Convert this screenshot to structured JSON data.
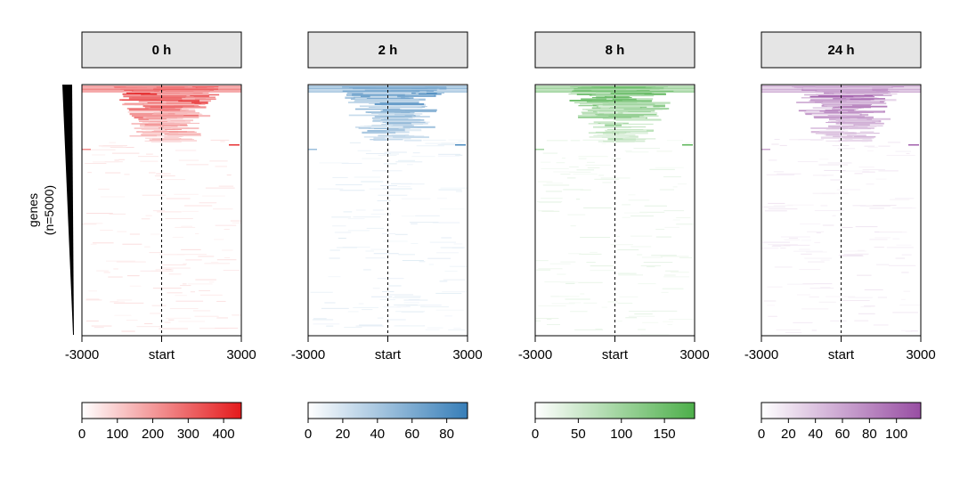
{
  "chart_data": {
    "type": "heatmap",
    "row_axis": {
      "label": "genes",
      "count_label": "(n=5000)"
    },
    "x_ticks": [
      "-3000",
      "start",
      "3000"
    ],
    "x_range": [
      -3000,
      3000
    ],
    "panels": [
      {
        "title": "0 h",
        "color_low": "#ffffff",
        "color_high": "#e41a1c",
        "scale_range": [
          0,
          450
        ],
        "scale_ticks": [
          0,
          100,
          200,
          300,
          400
        ]
      },
      {
        "title": "2 h",
        "color_low": "#ffffff",
        "color_high": "#377eb8",
        "scale_range": [
          0,
          92
        ],
        "scale_ticks": [
          0,
          20,
          40,
          60,
          80
        ]
      },
      {
        "title": "8 h",
        "color_low": "#ffffff",
        "color_high": "#4daf4a",
        "scale_range": [
          0,
          185
        ],
        "scale_ticks": [
          0,
          50,
          100,
          150
        ]
      },
      {
        "title": "24 h",
        "color_low": "#ffffff",
        "color_high": "#984ea3",
        "scale_range": [
          0,
          118
        ],
        "scale_ticks": [
          0,
          20,
          40,
          60,
          80,
          100
        ]
      }
    ]
  }
}
